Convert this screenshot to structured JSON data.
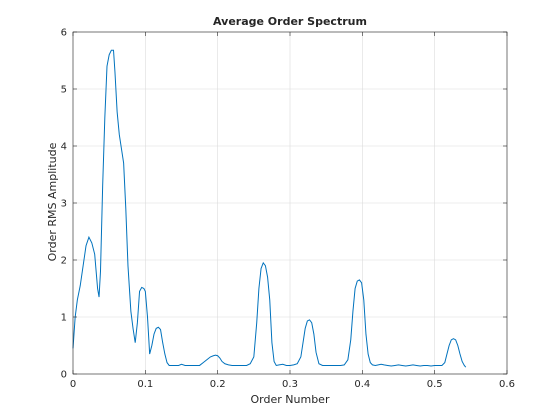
{
  "chart_data": {
    "type": "line",
    "title": "Average Order Spectrum",
    "xlabel": "Order Number",
    "ylabel": "Order RMS Amplitude",
    "xlim": [
      0,
      0.6
    ],
    "ylim": [
      0,
      6
    ],
    "xticks": [
      0,
      0.1,
      0.2,
      0.3,
      0.4,
      0.5,
      0.6
    ],
    "xtick_labels": [
      "0",
      "0.1",
      "0.2",
      "0.3",
      "0.4",
      "0.5",
      "0.6"
    ],
    "yticks": [
      0,
      1,
      2,
      3,
      4,
      5,
      6
    ],
    "ytick_labels": [
      "0",
      "1",
      "2",
      "3",
      "4",
      "5",
      "6"
    ],
    "grid": true,
    "line_color": "#0072bd",
    "series": [
      {
        "x": [
          0,
          0.003,
          0.006,
          0.01,
          0.014,
          0.018,
          0.022,
          0.026,
          0.03,
          0.034,
          0.036,
          0.038,
          0.041,
          0.044,
          0.047,
          0.05,
          0.053,
          0.056,
          0.058,
          0.061,
          0.064,
          0.067,
          0.07,
          0.073,
          0.076,
          0.08,
          0.083,
          0.086,
          0.089,
          0.092,
          0.095,
          0.098,
          0.1,
          0.103,
          0.106,
          0.109,
          0.112,
          0.115,
          0.118,
          0.121,
          0.124,
          0.127,
          0.13,
          0.133,
          0.136,
          0.139,
          0.142,
          0.146,
          0.15,
          0.155,
          0.16,
          0.165,
          0.17,
          0.175,
          0.18,
          0.185,
          0.19,
          0.194,
          0.197,
          0.2,
          0.203,
          0.206,
          0.21,
          0.215,
          0.22,
          0.225,
          0.23,
          0.235,
          0.24,
          0.245,
          0.25,
          0.254,
          0.257,
          0.26,
          0.263,
          0.266,
          0.269,
          0.272,
          0.275,
          0.278,
          0.281,
          0.285,
          0.29,
          0.295,
          0.3,
          0.305,
          0.31,
          0.315,
          0.318,
          0.321,
          0.324,
          0.327,
          0.33,
          0.333,
          0.336,
          0.34,
          0.345,
          0.35,
          0.355,
          0.36,
          0.365,
          0.37,
          0.375,
          0.38,
          0.384,
          0.387,
          0.39,
          0.393,
          0.396,
          0.399,
          0.402,
          0.405,
          0.408,
          0.411,
          0.414,
          0.418,
          0.422,
          0.426,
          0.43,
          0.435,
          0.44,
          0.445,
          0.45,
          0.455,
          0.46,
          0.465,
          0.47,
          0.475,
          0.48,
          0.485,
          0.49,
          0.495,
          0.5,
          0.505,
          0.51,
          0.514,
          0.517,
          0.52,
          0.523,
          0.526,
          0.529,
          0.532,
          0.535,
          0.538,
          0.541,
          0.543
        ],
        "values": [
          0.45,
          1.0,
          1.3,
          1.55,
          1.9,
          2.25,
          2.4,
          2.3,
          2.1,
          1.5,
          1.35,
          1.8,
          3.3,
          4.5,
          5.4,
          5.6,
          5.68,
          5.68,
          5.3,
          4.6,
          4.2,
          3.95,
          3.7,
          2.9,
          1.9,
          1.1,
          0.8,
          0.55,
          0.9,
          1.45,
          1.52,
          1.5,
          1.45,
          1.0,
          0.35,
          0.5,
          0.7,
          0.8,
          0.82,
          0.78,
          0.55,
          0.35,
          0.2,
          0.15,
          0.15,
          0.15,
          0.15,
          0.15,
          0.17,
          0.15,
          0.15,
          0.15,
          0.15,
          0.15,
          0.2,
          0.25,
          0.3,
          0.32,
          0.33,
          0.32,
          0.28,
          0.22,
          0.18,
          0.16,
          0.15,
          0.15,
          0.15,
          0.15,
          0.15,
          0.18,
          0.3,
          0.9,
          1.5,
          1.85,
          1.95,
          1.9,
          1.7,
          1.3,
          0.55,
          0.22,
          0.15,
          0.16,
          0.17,
          0.15,
          0.15,
          0.16,
          0.18,
          0.3,
          0.55,
          0.8,
          0.93,
          0.95,
          0.9,
          0.7,
          0.38,
          0.18,
          0.15,
          0.15,
          0.15,
          0.15,
          0.15,
          0.15,
          0.16,
          0.25,
          0.6,
          1.1,
          1.5,
          1.63,
          1.65,
          1.6,
          1.3,
          0.7,
          0.35,
          0.2,
          0.16,
          0.15,
          0.16,
          0.17,
          0.16,
          0.15,
          0.14,
          0.15,
          0.16,
          0.15,
          0.14,
          0.15,
          0.16,
          0.15,
          0.14,
          0.15,
          0.15,
          0.14,
          0.15,
          0.15,
          0.15,
          0.2,
          0.35,
          0.5,
          0.6,
          0.62,
          0.6,
          0.5,
          0.35,
          0.22,
          0.15,
          0.12
        ]
      }
    ]
  }
}
